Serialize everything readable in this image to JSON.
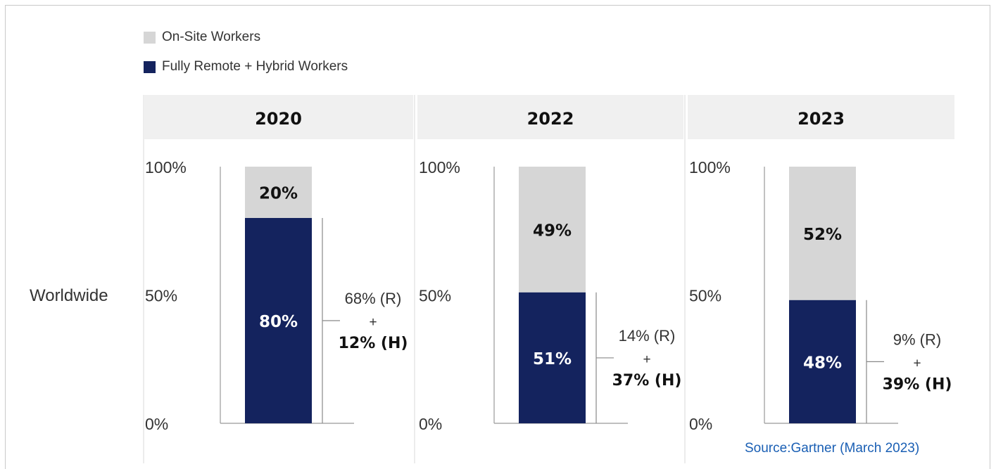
{
  "chart_data": {
    "type": "bar",
    "stacked": true,
    "row_label": "Worldwide",
    "categories": [
      "2020",
      "2022",
      "2023"
    ],
    "series": [
      {
        "name": "Fully Remote + Hybrid Workers",
        "color": "#14235e",
        "values": [
          80,
          51,
          48
        ]
      },
      {
        "name": "On-Site Workers",
        "color": "#d6d6d6",
        "values": [
          20,
          49,
          52
        ]
      }
    ],
    "ylim": [
      0,
      100
    ],
    "y_ticks": [
      "0%",
      "50%",
      "100%"
    ],
    "bar_labels": [
      {
        "remote": "80%",
        "onsite": "20%"
      },
      {
        "remote": "51%",
        "onsite": "49%"
      },
      {
        "remote": "48%",
        "onsite": "52%"
      }
    ],
    "breakdown": [
      {
        "remote_pct": 68,
        "hybrid_pct": 12,
        "remote_label": "68% (R)",
        "plus": "+",
        "hybrid_label": "12% (H)"
      },
      {
        "remote_pct": 14,
        "hybrid_pct": 37,
        "remote_label": "14% (R)",
        "plus": "+",
        "hybrid_label": "37% (H)"
      },
      {
        "remote_pct": 9,
        "hybrid_pct": 39,
        "remote_label": "9% (R)",
        "plus": "+",
        "hybrid_label": "39% (H)"
      }
    ],
    "legend": {
      "placement": "top-left",
      "items": [
        {
          "label": "On-Site Workers",
          "color": "#d6d6d6"
        },
        {
          "label": "Fully Remote + Hybrid Workers",
          "color": "#14235e"
        }
      ]
    },
    "grid": false
  },
  "source": "Source:Gartner (March 2023)",
  "colors": {
    "remote": "#14235e",
    "onsite": "#d6d6d6",
    "header_bg": "#f0f0f0",
    "source_text": "#1a5fb4",
    "divider": "#d9d9d9"
  }
}
